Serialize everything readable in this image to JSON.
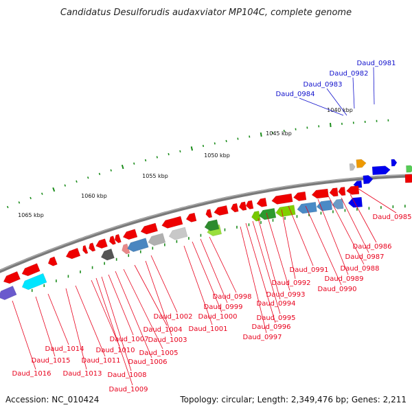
{
  "title": "Candidatus Desulforudis audaxviator MP104C, complete genome",
  "footer": {
    "accession": "Accession: NC_010424",
    "topology": "Topology: circular; Length: 2,349,476 bp; Genes: 2,211"
  },
  "colors": {
    "backbone": "#7a7a7a",
    "gene_red": "#ee0000",
    "gene_blue": "#0000ee",
    "tick_green": "#1a8c1a",
    "label_red": "#e8001c",
    "label_blue": "#1010cc"
  },
  "kbp_labels": [
    "1040 kbp",
    "1045 kbp",
    "1050 kbp",
    "1055 kbp",
    "1060 kbp",
    "1065 kbp"
  ],
  "gene_labels_top": [
    "Daud_0981",
    "Daud_0982",
    "Daud_0983",
    "Daud_0984"
  ],
  "gene_labels_bottom": [
    "Daud_0985",
    "Daud_0986",
    "Daud_0987",
    "Daud_0988",
    "Daud_0989",
    "Daud_0990",
    "Daud_0991",
    "Daud_0992",
    "Daud_0993",
    "Daud_0994",
    "Daud_0995",
    "Daud_0996",
    "Daud_0997",
    "Daud_0998",
    "Daud_0999",
    "Daud_1000",
    "Daud_1001",
    "Daud_1002",
    "Daud_1003",
    "Daud_1004",
    "Daud_1005",
    "Daud_1006",
    "Daud_1007",
    "Daud_1008",
    "Daud_1009",
    "Daud_1010",
    "Daud_1011",
    "Daud_1013",
    "Daud_1014",
    "Daud_1015",
    "Daud_1016"
  ]
}
